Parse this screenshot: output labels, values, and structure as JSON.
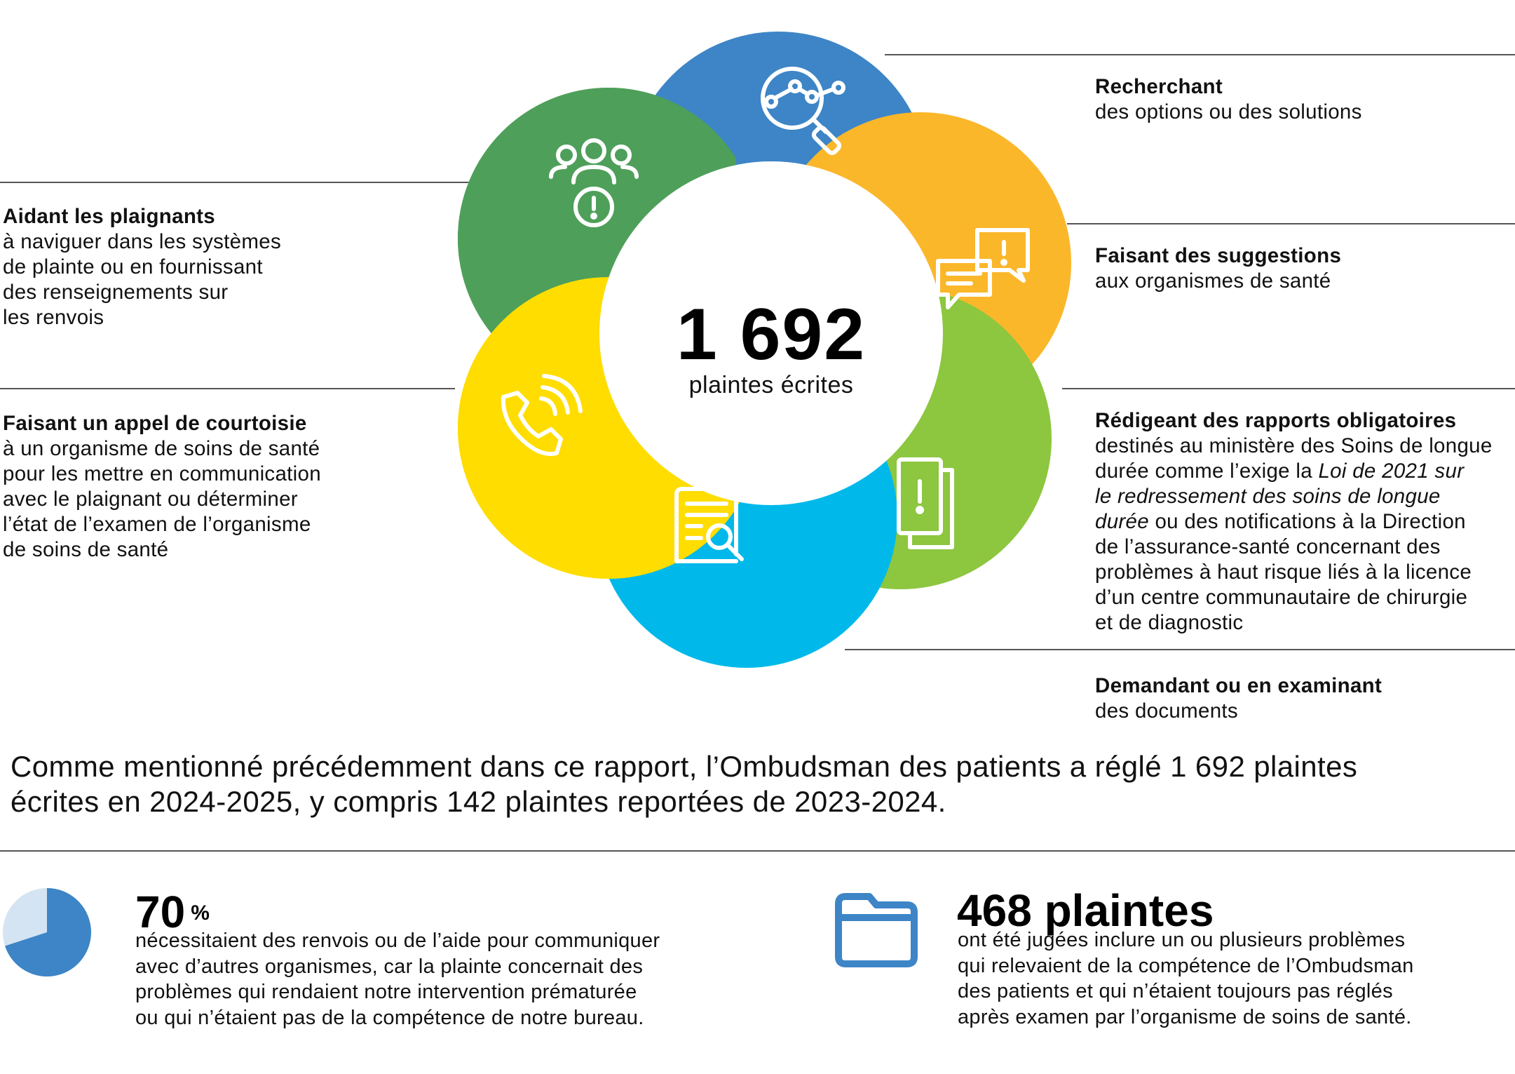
{
  "center": {
    "value": "1 692",
    "label": "plaintes écrites"
  },
  "items": {
    "search": {
      "title": "Recherchant",
      "lines": [
        "des options ou des solutions"
      ],
      "color": "#3D85C6",
      "icon": "magnifier-chart-icon"
    },
    "suggest": {
      "title": "Faisant des suggestions",
      "lines": [
        "aux organismes de santé"
      ],
      "color": "#FBB72A",
      "icon": "speech-bubbles-icon"
    },
    "reports": {
      "title": "Rédigeant des rapports obligatoires",
      "line1": "destinés au ministère des Soins de longue",
      "line2a": "durée comme l’exige la ",
      "line2b": "Loi de 2021 sur",
      "line3": "le redressement des soins de longue",
      "line4a": "durée",
      "line4b": " ou des notifications à la Direction",
      "line5": "de l’assurance-santé concernant des",
      "line6": "problèmes à haut risque liés à la licence",
      "line7": "d’un centre communautaire de chirurgie",
      "line8": "et de diagnostic",
      "color": "#8DC63F",
      "icon": "documents-alert-icon"
    },
    "documents": {
      "title": "Demandant ou en examinant",
      "lines": [
        "des documents"
      ],
      "color": "#00B9EA",
      "icon": "document-search-icon"
    },
    "call": {
      "title": "Faisant un appel de courtoisie",
      "lines": [
        "à un organisme de soins de santé",
        "pour les mettre en communication",
        "avec le plaignant ou déterminer",
        "l’état de l’examen de l’organisme",
        "de soins de santé"
      ],
      "color": "#FFDD00",
      "icon": "phone-call-icon"
    },
    "help": {
      "title": "Aidant les plaignants",
      "lines": [
        "à naviguer dans les systèmes",
        "de plainte ou en fournissant",
        "des renseignements sur",
        "les renvois"
      ],
      "color": "#4E9F5A",
      "icon": "people-alert-icon"
    }
  },
  "intro": {
    "line1": "Comme mentionné précédemment dans ce rapport, l’Ombudsman des patients a réglé 1 692 plaintes",
    "line2": "écrites en 2024-2025, y compris 142 plaintes reportées de 2023-2024."
  },
  "stat_percent": {
    "value": "70",
    "unit": "%",
    "fraction": 0.7,
    "lines": [
      "nécessitaient des renvois ou de l’aide pour communiquer",
      "avec d’autres organismes, car la plainte concernait des",
      "problèmes qui rendaient notre intervention prématurée",
      "ou qui n’étaient pas de la compétence de notre bureau."
    ],
    "pie_color": "#3D85C6",
    "pie_bg": "#D4E4F2"
  },
  "stat_complaints": {
    "value": "468",
    "unit": "plaintes",
    "lines": [
      "ont été jugées inclure un ou plusieurs problèmes",
      "qui relevaient de la compétence de l’Ombudsman",
      "des patients et qui n’étaient toujours pas réglés",
      "après examen par l’organisme de soins de santé."
    ],
    "icon": "folder-icon",
    "icon_color": "#3D85C6"
  }
}
